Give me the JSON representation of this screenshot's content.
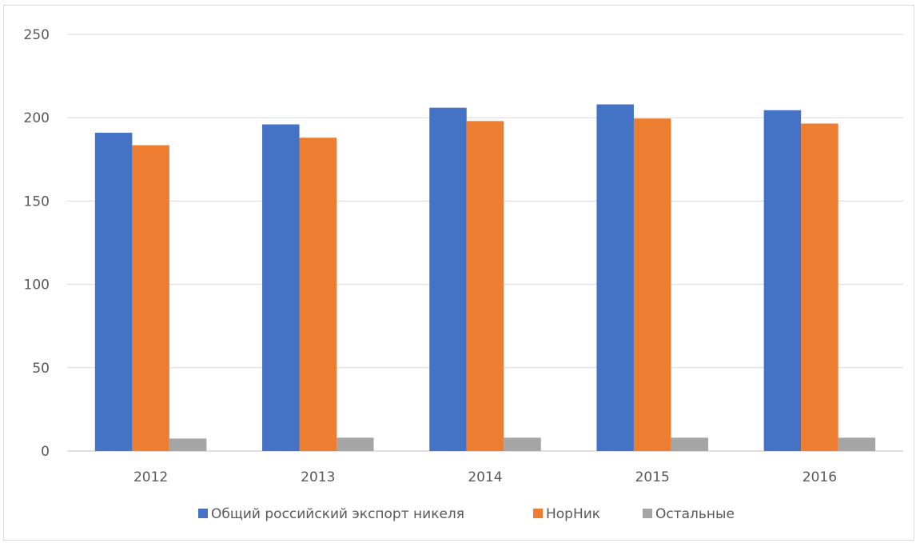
{
  "chart_data": {
    "type": "bar",
    "categories": [
      "2012",
      "2013",
      "2014",
      "2015",
      "2016"
    ],
    "series": [
      {
        "name": "Общий российский экспорт никеля",
        "color": "#4472C4",
        "values": [
          191,
          196,
          206,
          208,
          204.5
        ]
      },
      {
        "name": "НорНик",
        "color": "#ED7D31",
        "values": [
          183.5,
          188,
          198,
          199.5,
          196.5
        ]
      },
      {
        "name": "Остальные",
        "color": "#A5A5A5",
        "values": [
          7.5,
          8,
          8,
          8,
          8
        ]
      }
    ],
    "y_ticks": [
      "0",
      "50",
      "100",
      "150",
      "200",
      "250"
    ],
    "ylim": [
      0,
      250
    ],
    "grid": true,
    "legend_position": "bottom",
    "title": "",
    "xlabel": "",
    "ylabel": ""
  }
}
